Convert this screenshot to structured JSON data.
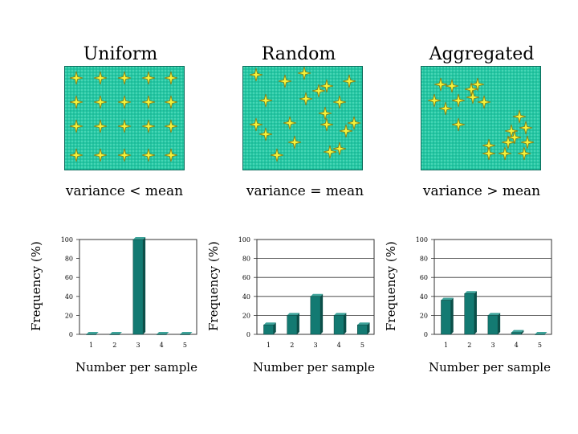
{
  "patterns": [
    {
      "title": "Uniform",
      "caption": "variance < mean"
    },
    {
      "title": "Random",
      "caption": "variance = mean"
    },
    {
      "title": "Aggregated",
      "caption": "variance > mean"
    }
  ],
  "colors": {
    "field": "#24c8a4",
    "star": "#f4f23a",
    "bar": "#137a72",
    "bar_dark": "#0b4f49"
  },
  "chart_data": [
    {
      "type": "bar",
      "title": "Uniform",
      "categories": [
        "1",
        "2",
        "3",
        "4",
        "5"
      ],
      "values": [
        0,
        0,
        100,
        0,
        0
      ],
      "xlabel": "Number per sample",
      "ylabel": "Frequency (%)",
      "ylim": [
        0,
        100
      ],
      "yticks": [
        "0",
        "20",
        "40",
        "60",
        "80",
        "100"
      ],
      "grid": false
    },
    {
      "type": "bar",
      "title": "Random",
      "categories": [
        "1",
        "2",
        "3",
        "4",
        "5"
      ],
      "values": [
        10,
        20,
        40,
        20,
        10
      ],
      "xlabel": "Number per sample",
      "ylabel": "Frequency (%)",
      "ylim": [
        0,
        100
      ],
      "yticks": [
        "0",
        "20",
        "40",
        "60",
        "80",
        "100"
      ],
      "grid": true
    },
    {
      "type": "bar",
      "title": "Aggregated",
      "categories": [
        "1",
        "2",
        "3",
        "4",
        "5"
      ],
      "values": [
        36,
        43,
        20,
        2,
        0
      ],
      "xlabel": "Number per sample",
      "ylabel": "Frequency (%)",
      "ylim": [
        0,
        100
      ],
      "yticks": [
        "0",
        "20",
        "40",
        "60",
        "80",
        "100"
      ],
      "grid": true
    }
  ]
}
